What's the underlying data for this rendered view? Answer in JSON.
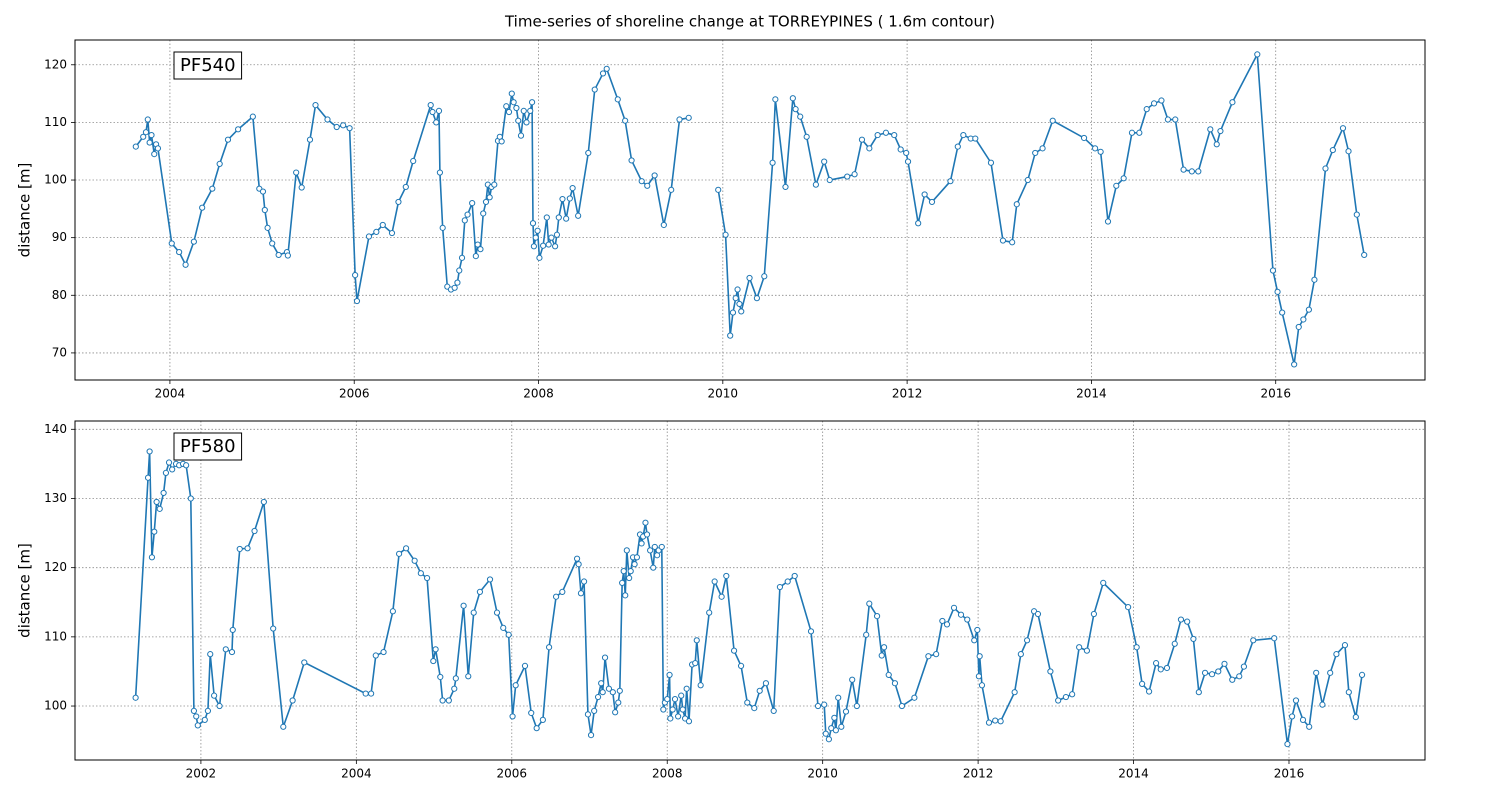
{
  "title": "Time-series of shoreline change at TORREYPINES ( 1.6m contour)",
  "chart_data": [
    {
      "type": "line",
      "annotation": "PF540",
      "y_label": "distance [m]",
      "color": "#1f77b4",
      "grid": true,
      "marker": "circle",
      "xlim": [
        2002.97,
        2017.62
      ],
      "ylim": [
        65.3,
        124.3
      ],
      "xticks": [
        2004,
        2006,
        2008,
        2010,
        2012,
        2014,
        2016
      ],
      "yticks": [
        70,
        80,
        90,
        100,
        110,
        120
      ],
      "x": [
        2003.63,
        2003.71,
        2003.74,
        2003.76,
        2003.78,
        2003.8,
        2003.83,
        2003.85,
        2003.87,
        2004.02,
        2004.1,
        2004.17,
        2004.26,
        2004.35,
        2004.46,
        2004.54,
        2004.63,
        2004.74,
        2004.9,
        2004.97,
        2005.01,
        2005.03,
        2005.06,
        2005.11,
        2005.18,
        2005.27,
        2005.28,
        2005.37,
        2005.43,
        2005.52,
        2005.58,
        2005.71,
        2005.81,
        2005.88,
        2005.95,
        2006.01,
        2006.03,
        2006.16,
        2006.24,
        2006.31,
        2006.41,
        2006.48,
        2006.56,
        2006.64,
        2006.83,
        2006.85,
        2006.89,
        2006.92,
        2006.93,
        2006.96,
        2007.01,
        2007.05,
        2007.09,
        2007.12,
        2007.14,
        2007.17,
        2007.2,
        2007.23,
        2007.28,
        2007.32,
        2007.34,
        2007.37,
        2007.4,
        2007.43,
        2007.45,
        2007.47,
        2007.49,
        2007.52,
        2007.56,
        2007.58,
        2007.6,
        2007.65,
        2007.68,
        2007.71,
        2007.73,
        2007.76,
        2007.78,
        2007.81,
        2007.84,
        2007.87,
        2007.91,
        2007.93,
        2007.94,
        2007.95,
        2007.97,
        2007.99,
        2008.01,
        2008.05,
        2008.09,
        2008.11,
        2008.14,
        2008.18,
        2008.2,
        2008.22,
        2008.26,
        2008.3,
        2008.34,
        2008.37,
        2008.43,
        2008.54,
        2008.61,
        2008.7,
        2008.74,
        2008.86,
        2008.94,
        2009.01,
        2009.12,
        2009.18,
        2009.26,
        2009.36,
        2009.44,
        2009.53,
        2009.63,
        null,
        2009.95,
        2010.03,
        2010.08,
        2010.11,
        2010.14,
        2010.16,
        2010.18,
        2010.2,
        2010.29,
        2010.37,
        2010.45,
        2010.54,
        2010.57,
        2010.68,
        2010.76,
        2010.79,
        2010.84,
        2010.91,
        2011.01,
        2011.1,
        2011.16,
        2011.35,
        2011.43,
        2011.51,
        2011.59,
        2011.68,
        2011.77,
        2011.86,
        2011.93,
        2011.99,
        2012.01,
        2012.12,
        2012.19,
        2012.27,
        2012.47,
        2012.55,
        2012.61,
        2012.69,
        2012.74,
        2012.91,
        2013.04,
        2013.14,
        2013.19,
        2013.31,
        2013.39,
        2013.47,
        2013.58,
        2013.92,
        2014.04,
        2014.1,
        2014.18,
        2014.27,
        2014.35,
        2014.44,
        2014.52,
        2014.6,
        2014.68,
        2014.76,
        2014.83,
        2014.91,
        2015.0,
        2015.09,
        2015.16,
        2015.29,
        2015.36,
        2015.4,
        2015.53,
        2015.8,
        2015.97,
        2016.02,
        2016.07,
        2016.2,
        2016.25,
        2016.3,
        2016.36,
        2016.42,
        2016.54,
        2016.62,
        2016.73,
        2016.79,
        2016.88,
        2016.96
      ],
      "values": [
        105.8,
        107.5,
        108.3,
        110.5,
        106.5,
        107.8,
        104.5,
        106.2,
        105.5,
        89,
        87.5,
        85.3,
        89.3,
        95.2,
        98.5,
        102.8,
        107,
        108.8,
        111,
        98.5,
        98,
        94.8,
        91.7,
        89,
        87,
        87.5,
        86.9,
        101.3,
        98.7,
        107,
        113,
        110.5,
        109.2,
        109.5,
        109,
        83.5,
        79,
        90.2,
        91,
        92.2,
        90.8,
        96.2,
        98.8,
        103.3,
        113,
        111.8,
        110,
        112,
        101.3,
        91.7,
        81.5,
        81,
        81.3,
        82.2,
        84.3,
        86.5,
        93,
        94,
        96,
        86.8,
        88.8,
        88,
        94.2,
        96.2,
        99.2,
        97,
        98.8,
        99.2,
        106.8,
        107.5,
        106.7,
        112.8,
        111.8,
        115,
        113.5,
        112.5,
        110.3,
        107.7,
        112,
        110,
        112,
        113.5,
        92.5,
        88.5,
        90,
        91.2,
        86.5,
        88.6,
        93.5,
        88.8,
        90,
        88.5,
        90.5,
        93.5,
        96.7,
        93.3,
        96.8,
        98.6,
        93.8,
        104.7,
        115.7,
        118.5,
        119.3,
        114,
        110.3,
        103.4,
        99.8,
        99,
        100.8,
        92.2,
        98.3,
        110.5,
        110.8,
        null,
        98.3,
        90.5,
        73,
        77,
        79.5,
        81,
        78.5,
        77.2,
        83,
        79.5,
        83.3,
        103,
        114,
        98.8,
        114.2,
        112.3,
        111,
        107.5,
        99.2,
        103.2,
        100,
        100.6,
        101,
        107,
        105.5,
        107.8,
        108.2,
        107.8,
        105.3,
        104.7,
        103.2,
        92.5,
        97.5,
        96.2,
        99.8,
        105.8,
        107.8,
        107.2,
        107.2,
        103,
        89.5,
        89.2,
        95.8,
        100,
        104.7,
        105.5,
        110.3,
        107.3,
        105.5,
        104.9,
        92.8,
        99,
        100.3,
        108.2,
        108.2,
        112.3,
        113.3,
        113.8,
        110.5,
        110.5,
        101.8,
        101.5,
        101.5,
        108.8,
        106.2,
        108.5,
        113.5,
        121.8,
        84.3,
        80.6,
        77,
        68,
        74.5,
        75.8,
        77.5,
        82.7,
        102,
        105.2,
        109,
        105,
        94,
        87
      ]
    },
    {
      "type": "line",
      "annotation": "PF580",
      "y_label": "distance [m]",
      "color": "#1f77b4",
      "grid": true,
      "marker": "circle",
      "xlim": [
        2000.38,
        2017.75
      ],
      "ylim": [
        92.2,
        141.2
      ],
      "xticks": [
        2002,
        2004,
        2006,
        2008,
        2010,
        2012,
        2014,
        2016
      ],
      "yticks": [
        100,
        110,
        120,
        130,
        140
      ],
      "x": [
        2001.16,
        2001.32,
        2001.34,
        2001.37,
        2001.4,
        2001.43,
        2001.47,
        2001.52,
        2001.55,
        2001.59,
        2001.63,
        2001.68,
        2001.72,
        2001.77,
        2001.81,
        2001.87,
        2001.91,
        2001.94,
        2001.96,
        2002.05,
        2002.09,
        2002.12,
        2002.17,
        2002.24,
        2002.32,
        2002.4,
        2002.41,
        2002.5,
        2002.6,
        2002.69,
        2002.81,
        2002.93,
        2003.06,
        2003.18,
        2003.33,
        2004.12,
        2004.19,
        2004.25,
        2004.35,
        2004.47,
        2004.55,
        2004.64,
        2004.75,
        2004.83,
        2004.91,
        2004.99,
        2005.02,
        2005.08,
        2005.11,
        2005.19,
        2005.26,
        2005.28,
        2005.38,
        2005.44,
        2005.51,
        2005.59,
        2005.72,
        2005.81,
        2005.89,
        2005.96,
        2006.01,
        2006.05,
        2006.17,
        2006.25,
        2006.32,
        2006.4,
        2006.48,
        2006.57,
        2006.65,
        2006.84,
        2006.86,
        2006.89,
        2006.93,
        2006.98,
        2007.02,
        2007.06,
        2007.11,
        2007.15,
        2007.17,
        2007.2,
        2007.25,
        2007.3,
        2007.33,
        2007.37,
        2007.39,
        2007.42,
        2007.44,
        2007.46,
        2007.48,
        2007.51,
        2007.53,
        2007.56,
        2007.58,
        2007.61,
        2007.65,
        2007.67,
        2007.69,
        2007.72,
        2007.74,
        2007.78,
        2007.82,
        2007.84,
        2007.87,
        2007.89,
        2007.93,
        2007.95,
        2007.97,
        2008.0,
        2008.03,
        2008.04,
        2008.07,
        2008.1,
        2008.14,
        2008.18,
        2008.2,
        2008.23,
        2008.25,
        2008.28,
        2008.32,
        2008.36,
        2008.38,
        2008.43,
        2008.54,
        2008.61,
        2008.7,
        2008.76,
        2008.86,
        2008.95,
        2009.03,
        2009.12,
        2009.19,
        2009.27,
        2009.37,
        2009.45,
        2009.55,
        2009.64,
        2009.85,
        2009.94,
        2010.02,
        2010.04,
        2010.08,
        2010.11,
        2010.15,
        2010.17,
        2010.2,
        2010.24,
        2010.3,
        2010.38,
        2010.44,
        2010.56,
        2010.6,
        2010.7,
        2010.76,
        2010.79,
        2010.85,
        2010.93,
        2011.02,
        2011.18,
        2011.36,
        2011.46,
        2011.54,
        2011.6,
        2011.69,
        2011.78,
        2011.86,
        2011.95,
        2011.99,
        2012.01,
        2012.02,
        2012.05,
        2012.14,
        2012.22,
        2012.29,
        2012.47,
        2012.55,
        2012.63,
        2012.72,
        2012.77,
        2012.93,
        2013.03,
        2013.13,
        2013.21,
        2013.3,
        2013.4,
        2013.49,
        2013.61,
        2013.93,
        2014.04,
        2014.11,
        2014.2,
        2014.29,
        2014.35,
        2014.43,
        2014.53,
        2014.61,
        2014.69,
        2014.77,
        2014.84,
        2014.92,
        2015.01,
        2015.09,
        2015.17,
        2015.27,
        2015.36,
        2015.42,
        2015.54,
        2015.81,
        2015.98,
        2016.04,
        2016.09,
        2016.18,
        2016.26,
        2016.35,
        2016.43,
        2016.53,
        2016.61,
        2016.72,
        2016.77,
        2016.86,
        2016.94
      ],
      "values": [
        101.2,
        133,
        136.8,
        121.5,
        125.2,
        129.5,
        128.5,
        130.8,
        133.7,
        135.2,
        134.2,
        135,
        134.8,
        135,
        134.8,
        130,
        99.3,
        98.5,
        97.2,
        98,
        99.3,
        107.5,
        101.5,
        100,
        108.2,
        107.8,
        111,
        122.7,
        122.8,
        125.3,
        129.5,
        111.2,
        97,
        100.8,
        106.3,
        101.8,
        101.8,
        107.3,
        107.8,
        113.7,
        122,
        122.8,
        121,
        119.2,
        118.5,
        106.5,
        108.2,
        104.2,
        100.8,
        100.8,
        102.5,
        104,
        114.5,
        104.3,
        113.5,
        116.5,
        118.3,
        113.5,
        111.3,
        110.3,
        98.5,
        103,
        105.8,
        99,
        96.8,
        98,
        108.5,
        115.8,
        116.5,
        121.3,
        120.5,
        116.3,
        118,
        98.8,
        95.8,
        99.3,
        101.3,
        103.3,
        102,
        107,
        102.5,
        102,
        99.1,
        100.5,
        102.2,
        117.8,
        119.5,
        116,
        122.5,
        118.5,
        119.5,
        121.5,
        120.5,
        121.5,
        124.8,
        123.5,
        124.5,
        126.5,
        124.8,
        122.5,
        120,
        123,
        121.8,
        122.5,
        123,
        99.5,
        100.5,
        101,
        104.5,
        98.2,
        99.5,
        101,
        98.5,
        101.5,
        99.5,
        98.2,
        102.5,
        97.8,
        106,
        106.2,
        109.5,
        103,
        113.5,
        118,
        115.8,
        118.8,
        108,
        105.8,
        100.5,
        99.7,
        102.2,
        103.3,
        99.3,
        117.2,
        118,
        118.8,
        110.8,
        100,
        100.2,
        96,
        95.2,
        96.8,
        98.3,
        96.5,
        101.2,
        97,
        99.2,
        103.8,
        100,
        110.3,
        114.8,
        113,
        107.3,
        108.5,
        104.5,
        103.3,
        100,
        101.2,
        107.2,
        107.5,
        112.3,
        111.8,
        114.2,
        113.2,
        112.5,
        109.5,
        111,
        104.3,
        107.2,
        103,
        97.6,
        97.9,
        97.8,
        102,
        107.5,
        109.5,
        113.7,
        113.3,
        105,
        100.8,
        101.3,
        101.7,
        108.5,
        108,
        113.3,
        117.8,
        114.3,
        108.5,
        103.2,
        102.1,
        106.2,
        105.3,
        105.5,
        109,
        112.5,
        112.2,
        109.7,
        102,
        104.8,
        104.6,
        105,
        106.1,
        103.8,
        104.3,
        105.7,
        109.5,
        109.8,
        94.5,
        98.5,
        100.8,
        98,
        97,
        104.8,
        100.2,
        104.8,
        107.5,
        108.8,
        102,
        98.4,
        104.5
      ]
    }
  ]
}
